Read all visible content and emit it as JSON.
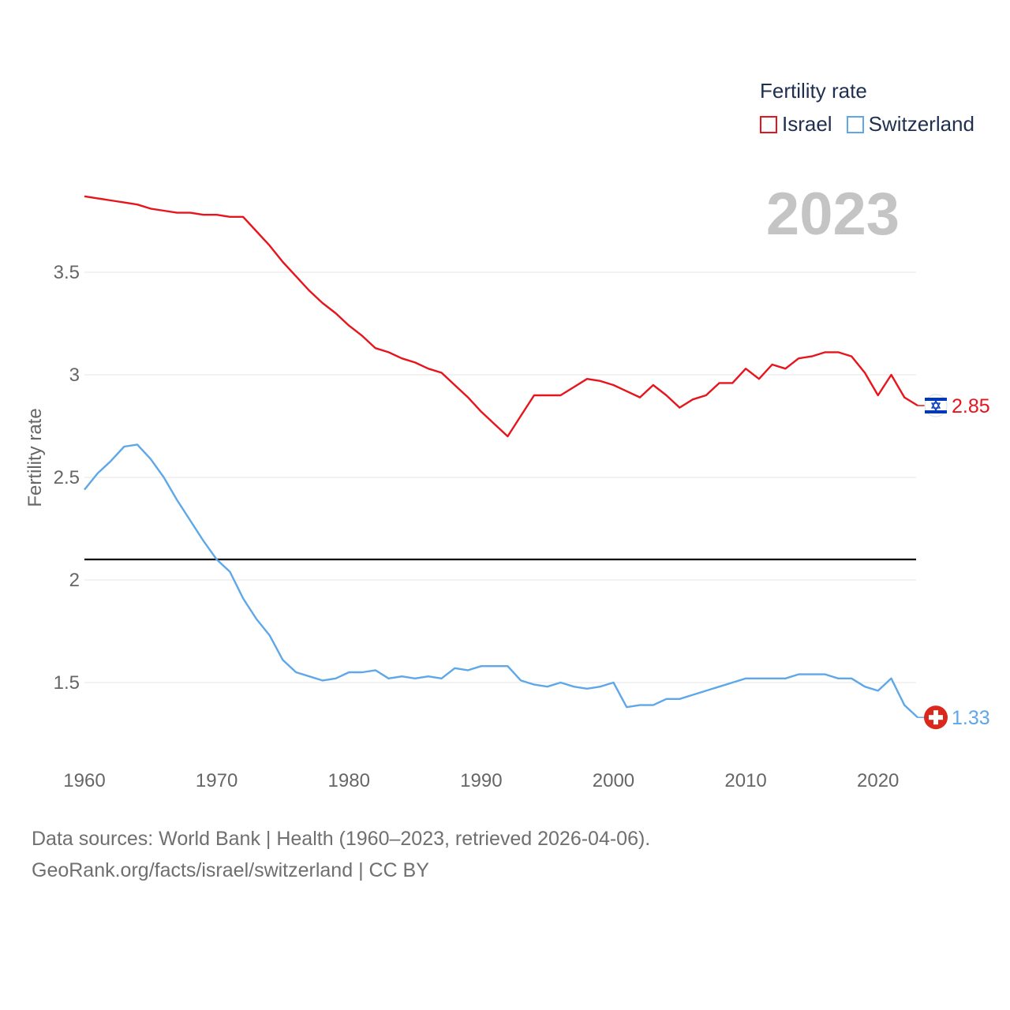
{
  "legend": {
    "title": "Fertility rate",
    "items": [
      {
        "label": "Israel",
        "color": "#e8141c"
      },
      {
        "label": "Switzerland",
        "color": "#5ea7e8"
      }
    ]
  },
  "watermark_year": "2023",
  "footer": {
    "line1": "Data sources: World Bank | Health (1960–2023, retrieved 2026-04-06).",
    "line2": "GeoRank.org/facts/israel/switzerland | CC BY"
  },
  "chart_data": {
    "type": "line",
    "title": "Fertility rate",
    "xlabel": "",
    "ylabel": "Fertility rate",
    "xlim": [
      1960,
      2023
    ],
    "ylim": [
      1.2,
      3.9
    ],
    "x_ticks": [
      1960,
      1970,
      1980,
      1990,
      2000,
      2010,
      2020
    ],
    "y_ticks": [
      1.5,
      2,
      2.5,
      3,
      3.5
    ],
    "y_tick_labels": [
      "1.5",
      "2",
      "2.5",
      "3",
      "3.5"
    ],
    "reference_line": {
      "y": 2.1,
      "color": "#000000"
    },
    "grid": true,
    "x": [
      1960,
      1961,
      1962,
      1963,
      1964,
      1965,
      1966,
      1967,
      1968,
      1969,
      1970,
      1971,
      1972,
      1973,
      1974,
      1975,
      1976,
      1977,
      1978,
      1979,
      1980,
      1981,
      1982,
      1983,
      1984,
      1985,
      1986,
      1987,
      1988,
      1989,
      1990,
      1991,
      1992,
      1993,
      1994,
      1995,
      1996,
      1997,
      1998,
      1999,
      2000,
      2001,
      2002,
      2003,
      2004,
      2005,
      2006,
      2007,
      2008,
      2009,
      2010,
      2011,
      2012,
      2013,
      2014,
      2015,
      2016,
      2017,
      2018,
      2019,
      2020,
      2021,
      2022,
      2023
    ],
    "series": [
      {
        "name": "Israel",
        "color": "#e8141c",
        "end_label": "2.85",
        "values": [
          3.87,
          3.86,
          3.85,
          3.84,
          3.83,
          3.81,
          3.8,
          3.79,
          3.79,
          3.78,
          3.78,
          3.77,
          3.77,
          3.7,
          3.63,
          3.55,
          3.48,
          3.41,
          3.35,
          3.3,
          3.24,
          3.19,
          3.13,
          3.11,
          3.08,
          3.06,
          3.03,
          3.01,
          2.95,
          2.89,
          2.82,
          2.76,
          2.7,
          2.8,
          2.9,
          2.9,
          2.9,
          2.94,
          2.98,
          2.97,
          2.95,
          2.92,
          2.89,
          2.95,
          2.9,
          2.84,
          2.88,
          2.9,
          2.96,
          2.96,
          3.03,
          2.98,
          3.05,
          3.03,
          3.08,
          3.09,
          3.11,
          3.11,
          3.09,
          3.01,
          2.9,
          3.0,
          2.89,
          2.85
        ]
      },
      {
        "name": "Switzerland",
        "color": "#5ea7e8",
        "end_label": "1.33",
        "values": [
          2.44,
          2.52,
          2.58,
          2.65,
          2.66,
          2.59,
          2.5,
          2.39,
          2.29,
          2.19,
          2.1,
          2.04,
          1.91,
          1.81,
          1.73,
          1.61,
          1.55,
          1.53,
          1.51,
          1.52,
          1.55,
          1.55,
          1.56,
          1.52,
          1.53,
          1.52,
          1.53,
          1.52,
          1.57,
          1.56,
          1.58,
          1.58,
          1.58,
          1.51,
          1.49,
          1.48,
          1.5,
          1.48,
          1.47,
          1.48,
          1.5,
          1.38,
          1.39,
          1.39,
          1.42,
          1.42,
          1.44,
          1.46,
          1.48,
          1.5,
          1.52,
          1.52,
          1.52,
          1.52,
          1.54,
          1.54,
          1.54,
          1.52,
          1.52,
          1.48,
          1.46,
          1.52,
          1.39,
          1.33
        ]
      }
    ]
  }
}
